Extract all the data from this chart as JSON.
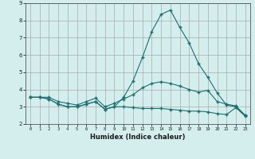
{
  "xlabel": "Humidex (Indice chaleur)",
  "xlim": [
    -0.5,
    23.5
  ],
  "ylim": [
    2,
    9
  ],
  "yticks": [
    2,
    3,
    4,
    5,
    6,
    7,
    8,
    9
  ],
  "xticks": [
    0,
    1,
    2,
    3,
    4,
    5,
    6,
    7,
    8,
    9,
    10,
    11,
    12,
    13,
    14,
    15,
    16,
    17,
    18,
    19,
    20,
    21,
    22,
    23
  ],
  "line_color": "#1a7070",
  "bg_color": "#d4eeee",
  "grid_color": "#aaaaaa",
  "line1_x": [
    0,
    1,
    2,
    3,
    4,
    5,
    6,
    7,
    8,
    9,
    10,
    11,
    12,
    13,
    14,
    15,
    16,
    17,
    18,
    19,
    20,
    21,
    22,
    23
  ],
  "line1_y": [
    3.55,
    3.55,
    3.45,
    3.15,
    3.0,
    3.0,
    3.15,
    3.3,
    2.85,
    3.0,
    3.0,
    2.95,
    2.9,
    2.9,
    2.9,
    2.85,
    2.8,
    2.75,
    2.75,
    2.7,
    2.6,
    2.55,
    2.95,
    2.45
  ],
  "line2_x": [
    0,
    1,
    2,
    3,
    4,
    5,
    6,
    7,
    8,
    9,
    10,
    11,
    12,
    13,
    14,
    15,
    16,
    17,
    18,
    19,
    20,
    21,
    22,
    23
  ],
  "line2_y": [
    3.55,
    3.55,
    3.55,
    3.3,
    3.2,
    3.1,
    3.3,
    3.5,
    3.0,
    3.2,
    3.45,
    3.7,
    4.1,
    4.35,
    4.45,
    4.35,
    4.2,
    4.0,
    3.85,
    3.95,
    3.3,
    3.15,
    3.05,
    2.5
  ],
  "line3_x": [
    0,
    1,
    2,
    3,
    4,
    5,
    6,
    7,
    8,
    9,
    10,
    11,
    12,
    13,
    14,
    15,
    16,
    17,
    18,
    19,
    20,
    21,
    22,
    23
  ],
  "line3_y": [
    3.55,
    3.55,
    3.45,
    3.15,
    3.0,
    3.0,
    3.15,
    3.3,
    2.85,
    3.0,
    3.55,
    4.5,
    5.85,
    7.35,
    8.35,
    8.6,
    7.6,
    6.7,
    5.5,
    4.7,
    3.8,
    3.1,
    3.0,
    2.5
  ]
}
